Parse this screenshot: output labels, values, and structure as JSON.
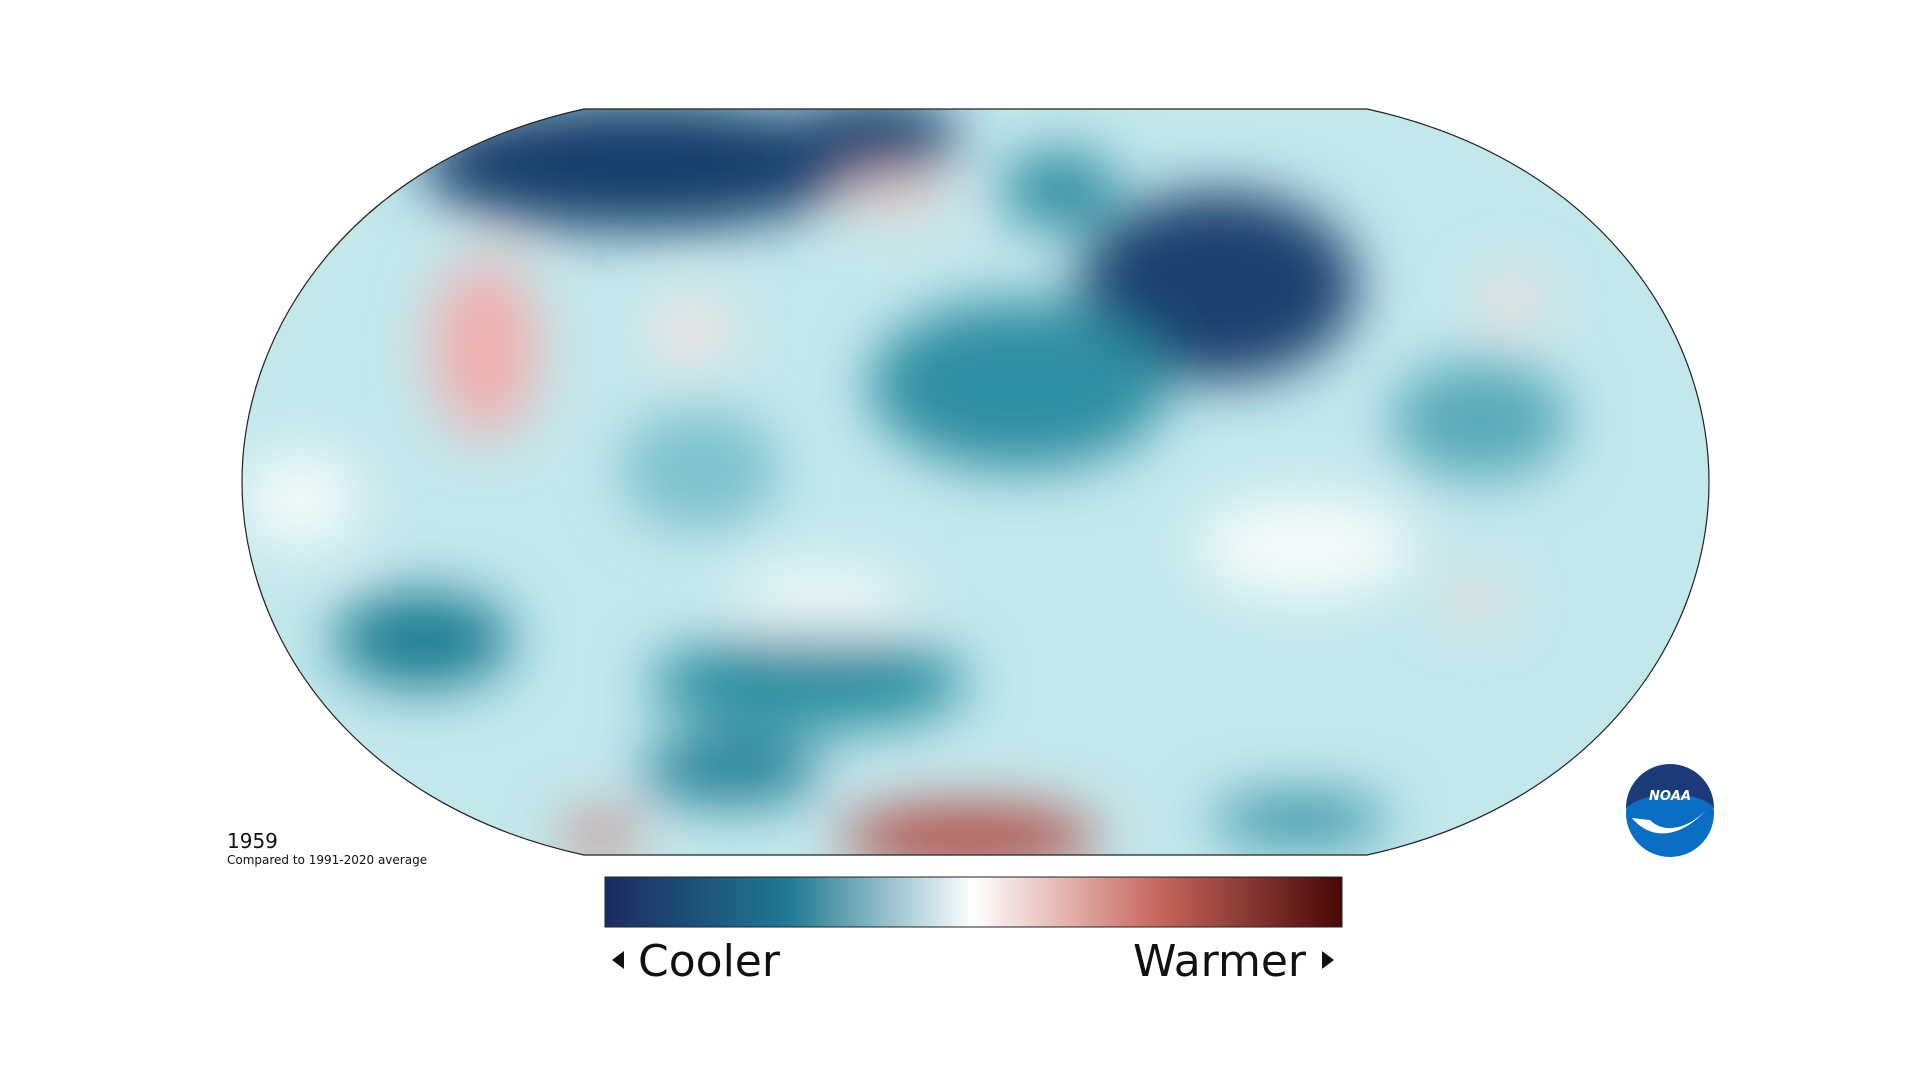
{
  "year": "1959",
  "subtitle": "Compared to 1991-2020 average",
  "legend": {
    "low": "Cooler",
    "high": "Warmer"
  },
  "logo": "NOAA"
}
